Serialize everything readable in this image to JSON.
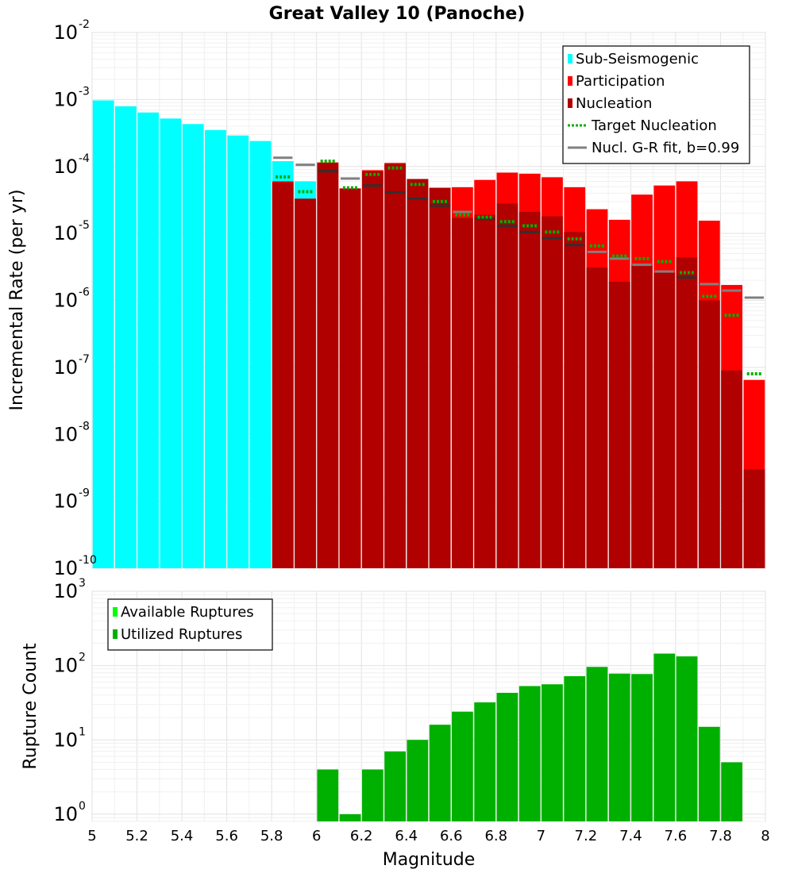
{
  "title": "Great Valley 10 (Panoche)",
  "colors": {
    "sub_seismogenic": "#00ffff",
    "participation": "#ff0000",
    "nucleation": "#b00000",
    "target_nucleation": "#00b000",
    "gr_fit": "#808080",
    "nucl_marker": "#303030",
    "ruptures": "#00b000",
    "available_ruptures": "#00ff00"
  },
  "chart_data": [
    {
      "type": "bar",
      "title": "Great Valley 10 (Panoche)",
      "xlabel": "",
      "ylabel": "Incremental Rate (per yr)",
      "xlim": [
        5,
        8
      ],
      "ylim": [
        1e-10,
        0.01
      ],
      "y_scale": "log",
      "y_ticks": [
        "10^-10",
        "10^-9",
        "10^-8",
        "10^-7",
        "10^-6",
        "10^-5",
        "10^-4",
        "10^-3",
        "10^-2"
      ],
      "bin_width": 0.1,
      "legend_position": "top-right",
      "legend": [
        "Sub-Seismogenic",
        "Participation",
        "Nucleation",
        "Target Nucleation",
        "Nucl. G-R fit, b=0.99"
      ],
      "series": [
        {
          "name": "Sub-Seismogenic",
          "x": [
            5.05,
            5.15,
            5.25,
            5.35,
            5.45,
            5.55,
            5.65,
            5.75,
            5.85,
            5.95
          ],
          "values": [
            0.00097,
            0.00079,
            0.00064,
            0.00052,
            0.00043,
            0.00035,
            0.00029,
            0.00024,
            0.00012,
            6e-05
          ]
        },
        {
          "name": "Participation",
          "x": [
            5.85,
            5.95,
            6.05,
            6.15,
            6.25,
            6.35,
            6.45,
            6.55,
            6.65,
            6.75,
            6.85,
            6.95,
            7.05,
            7.15,
            7.25,
            7.35,
            7.45,
            7.55,
            7.65,
            7.75,
            7.85,
            7.95
          ],
          "values": [
            6e-05,
            3.3e-05,
            0.000115,
            4.7e-05,
            8.8e-05,
            0.000113,
            6.5e-05,
            4.8e-05,
            4.9e-05,
            6.3e-05,
            8.1e-05,
            7.8e-05,
            6.9e-05,
            4.9e-05,
            2.3e-05,
            1.6e-05,
            3.8e-05,
            5.2e-05,
            6e-05,
            1.55e-05,
            1.7e-06,
            6.5e-08
          ]
        },
        {
          "name": "Nucleation",
          "x": [
            5.85,
            5.95,
            6.05,
            6.15,
            6.25,
            6.35,
            6.45,
            6.55,
            6.65,
            6.75,
            6.85,
            6.95,
            7.05,
            7.15,
            7.25,
            7.35,
            7.45,
            7.55,
            7.65,
            7.75,
            7.85,
            7.95
          ],
          "values": [
            5.8e-05,
            3.3e-05,
            0.000113,
            4.7e-05,
            8.5e-05,
            0.000108,
            6.5e-05,
            4.8e-05,
            1.7e-05,
            1.9e-05,
            2.8e-05,
            2.1e-05,
            1.8e-05,
            1.05e-05,
            3.1e-06,
            1.9e-06,
            3.3e-06,
            2.6e-06,
            4.4e-06,
            1e-06,
            9e-08,
            3e-09
          ]
        },
        {
          "name": "Target Nucleation",
          "x": [
            5.85,
            5.95,
            6.05,
            6.15,
            6.25,
            6.35,
            6.45,
            6.55,
            6.65,
            6.75,
            6.85,
            6.95,
            7.05,
            7.15,
            7.25,
            7.35,
            7.45,
            7.55,
            7.65,
            7.75,
            7.85,
            7.95
          ],
          "values": [
            7e-05,
            4.2e-05,
            0.00012,
            4.8e-05,
            7.6e-05,
            9.5e-05,
            5.4e-05,
            3e-05,
            1.9e-05,
            1.75e-05,
            1.5e-05,
            1.3e-05,
            1.05e-05,
            8.3e-06,
            6.5e-06,
            4.6e-06,
            4.2e-06,
            3.8e-06,
            2.6e-06,
            1.15e-06,
            6e-07,
            8e-08
          ]
        },
        {
          "name": "Nucl. G-R fit, b=0.99",
          "x": [
            5.85,
            5.95,
            6.05,
            6.15,
            6.25,
            6.35,
            6.45,
            6.55,
            6.65,
            6.75,
            6.85,
            6.95,
            7.05,
            7.15,
            7.25,
            7.35,
            7.45,
            7.55,
            7.65,
            7.75,
            7.85,
            7.95
          ],
          "values": [
            0.000135,
            0.000106,
            8.5e-05,
            6.6e-05,
            5.2e-05,
            4.1e-05,
            3.3e-05,
            2.6e-05,
            2.1e-05,
            1.65e-05,
            1.3e-05,
            1.05e-05,
            8.5e-06,
            6.7e-06,
            5.3e-06,
            4.2e-06,
            3.4e-06,
            2.7e-06,
            2.2e-06,
            1.75e-06,
            1.4e-06,
            1.1e-06
          ]
        }
      ]
    },
    {
      "type": "bar",
      "xlabel": "Magnitude",
      "ylabel": "Rupture Count",
      "xlim": [
        5,
        8
      ],
      "ylim": [
        0.8,
        1000
      ],
      "y_scale": "log",
      "y_ticks": [
        "10^0",
        "10^1",
        "10^2",
        "10^3"
      ],
      "x_ticks": [
        "5",
        "5.2",
        "5.4",
        "5.6",
        "5.8",
        "6",
        "6.2",
        "6.4",
        "6.6",
        "6.8",
        "7",
        "7.2",
        "7.4",
        "7.6",
        "7.8",
        "8"
      ],
      "bin_width": 0.1,
      "legend_position": "top-left",
      "legend": [
        "Available Ruptures",
        "Utilized Ruptures"
      ],
      "series": [
        {
          "name": "Utilized Ruptures",
          "x": [
            6.05,
            6.15,
            6.25,
            6.35,
            6.45,
            6.55,
            6.65,
            6.75,
            6.85,
            6.95,
            7.05,
            7.15,
            7.25,
            7.35,
            7.45,
            7.55,
            7.65,
            7.75,
            7.85
          ],
          "values": [
            4,
            1,
            4,
            7,
            10,
            16,
            24,
            32,
            43,
            53,
            56,
            72,
            96,
            78,
            77,
            145,
            133,
            15,
            5
          ]
        }
      ]
    }
  ]
}
